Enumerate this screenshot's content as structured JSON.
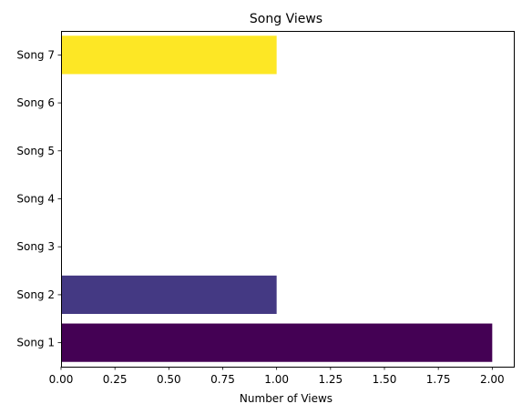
{
  "chart_data": {
    "type": "bar",
    "orientation": "horizontal",
    "title": "Song Views",
    "xlabel": "Number of Views",
    "ylabel": "",
    "categories": [
      "Song 1",
      "Song 2",
      "Song 3",
      "Song 4",
      "Song 5",
      "Song 6",
      "Song 7"
    ],
    "values": [
      2,
      1,
      0,
      0,
      0,
      0,
      1
    ],
    "colors": [
      "#440154",
      "#443983",
      "#31688e",
      "#21918c",
      "#35b779",
      "#90d743",
      "#fde725"
    ],
    "xlim": [
      0,
      2.1
    ],
    "xticks": [
      0.0,
      0.25,
      0.5,
      0.75,
      1.0,
      1.25,
      1.5,
      1.75,
      2.0
    ],
    "xtick_labels": [
      "0.00",
      "0.25",
      "0.50",
      "0.75",
      "1.00",
      "1.25",
      "1.50",
      "1.75",
      "2.00"
    ],
    "grid": false,
    "legend": "none"
  }
}
